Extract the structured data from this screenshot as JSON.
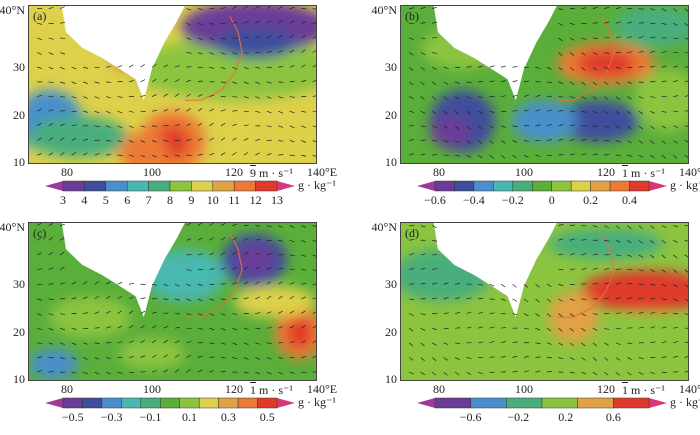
{
  "axes": {
    "lat_labels": [
      "40°N",
      "30",
      "20",
      "10"
    ],
    "lon_labels": [
      "80",
      "100",
      "120",
      "140°E"
    ]
  },
  "panels": [
    {
      "label": "(a)",
      "ref_vector": "9",
      "ref_unit": "m · s⁻¹",
      "cb_unit": "g · kg⁻¹",
      "ticks": [
        "3",
        "4",
        "5",
        "6",
        "7",
        "8",
        "9",
        "10",
        "11",
        "12",
        "13"
      ],
      "colors": [
        "#6a3c98",
        "#3f4e9c",
        "#4a8fcb",
        "#4ab8b0",
        "#4aae7c",
        "#8cc43f",
        "#ddd04a",
        "#e0a244",
        "#ec7a36",
        "#df3a2b"
      ],
      "end_colors": [
        "#9b3a9b",
        "#d8377a"
      ]
    },
    {
      "label": "(b)",
      "ref_vector": "1",
      "ref_unit": "m · s⁻¹",
      "cb_unit": "g · kg⁻¹",
      "ticks": [
        "−0.6",
        "−0.4",
        "−0.2",
        "0",
        "0.2",
        "0.4"
      ],
      "colors": [
        "#6a3c98",
        "#3f4e9c",
        "#4a8fcb",
        "#4ab8b0",
        "#4aae7c",
        "#5aae3a",
        "#8cc43f",
        "#ddd04a",
        "#e0a244",
        "#ec7a36",
        "#df3a2b"
      ],
      "end_colors": [
        "#9b3a9b",
        "#d8377a"
      ]
    },
    {
      "label": "(c)",
      "ref_vector": "1",
      "ref_unit": "m · s⁻¹",
      "cb_unit": "g · kg⁻¹",
      "ticks": [
        "−0.5",
        "−0.3",
        "−0.1",
        "0.1",
        "0.3",
        "0.5"
      ],
      "colors": [
        "#6a3c98",
        "#3f4e9c",
        "#4a8fcb",
        "#4ab8b0",
        "#4aae7c",
        "#5aae3a",
        "#8cc43f",
        "#ddd04a",
        "#e0a244",
        "#ec7a36",
        "#df3a2b"
      ],
      "end_colors": [
        "#9b3a9b",
        "#d8377a"
      ]
    },
    {
      "label": "(d)",
      "ref_vector": "1",
      "ref_unit": "m · s⁻¹",
      "cb_unit": "g · kg⁻¹",
      "ticks": [
        "−0.6",
        "−0.2",
        "0.2",
        "0.6"
      ],
      "colors": [
        "#6a3c98",
        "#4a8fcb",
        "#4aae7c",
        "#8cc43f",
        "#e0a244",
        "#df3a2b"
      ],
      "end_colors": [
        "#9b3a9b",
        "#d8377a"
      ]
    }
  ]
}
